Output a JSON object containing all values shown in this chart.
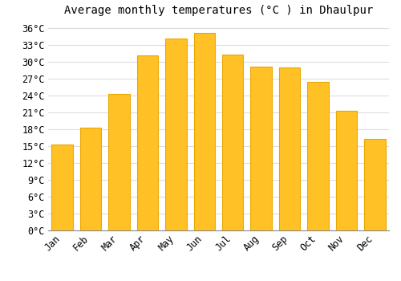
{
  "title": "Average monthly temperatures (°C ) in Dhaulpur",
  "months": [
    "Jan",
    "Feb",
    "Mar",
    "Apr",
    "May",
    "Jun",
    "Jul",
    "Aug",
    "Sep",
    "Oct",
    "Nov",
    "Dec"
  ],
  "values": [
    15.3,
    18.3,
    24.3,
    31.2,
    34.2,
    35.1,
    31.3,
    29.2,
    29.0,
    26.5,
    21.3,
    16.3
  ],
  "bar_color": "#FFC125",
  "bar_edge_color": "#E8A800",
  "background_color": "#FFFFFF",
  "grid_color": "#DDDDDD",
  "ytick_step": 3,
  "ymin": 0,
  "ymax": 37,
  "title_fontsize": 10,
  "tick_fontsize": 8.5,
  "font_family": "monospace",
  "bar_width": 0.75
}
